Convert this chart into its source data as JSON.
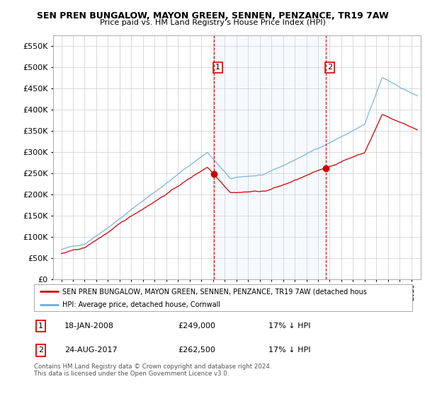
{
  "title": "SEN PREN BUNGALOW, MAYON GREEN, SENNEN, PENZANCE, TR19 7AW",
  "subtitle": "Price paid vs. HM Land Registry's House Price Index (HPI)",
  "legend_line1": "SEN PREN BUNGALOW, MAYON GREEN, SENNEN, PENZANCE, TR19 7AW (detached hous",
  "legend_line2": "HPI: Average price, detached house, Cornwall",
  "footer": "Contains HM Land Registry data © Crown copyright and database right 2024.\nThis data is licensed under the Open Government Licence v3.0.",
  "transaction1_date": "18-JAN-2008",
  "transaction1_price": "£249,000",
  "transaction1_hpi": "17% ↓ HPI",
  "transaction2_date": "24-AUG-2017",
  "transaction2_price": "£262,500",
  "transaction2_hpi": "17% ↓ HPI",
  "ylim": [
    0,
    575000
  ],
  "yticks": [
    0,
    50000,
    100000,
    150000,
    200000,
    250000,
    300000,
    350000,
    400000,
    450000,
    500000,
    550000
  ],
  "hpi_color": "#6baed6",
  "price_color": "#cc0000",
  "vline_color": "#dd0000",
  "shade_color": "#ddeeff",
  "grid_color": "#cccccc",
  "background_color": "#ffffff"
}
